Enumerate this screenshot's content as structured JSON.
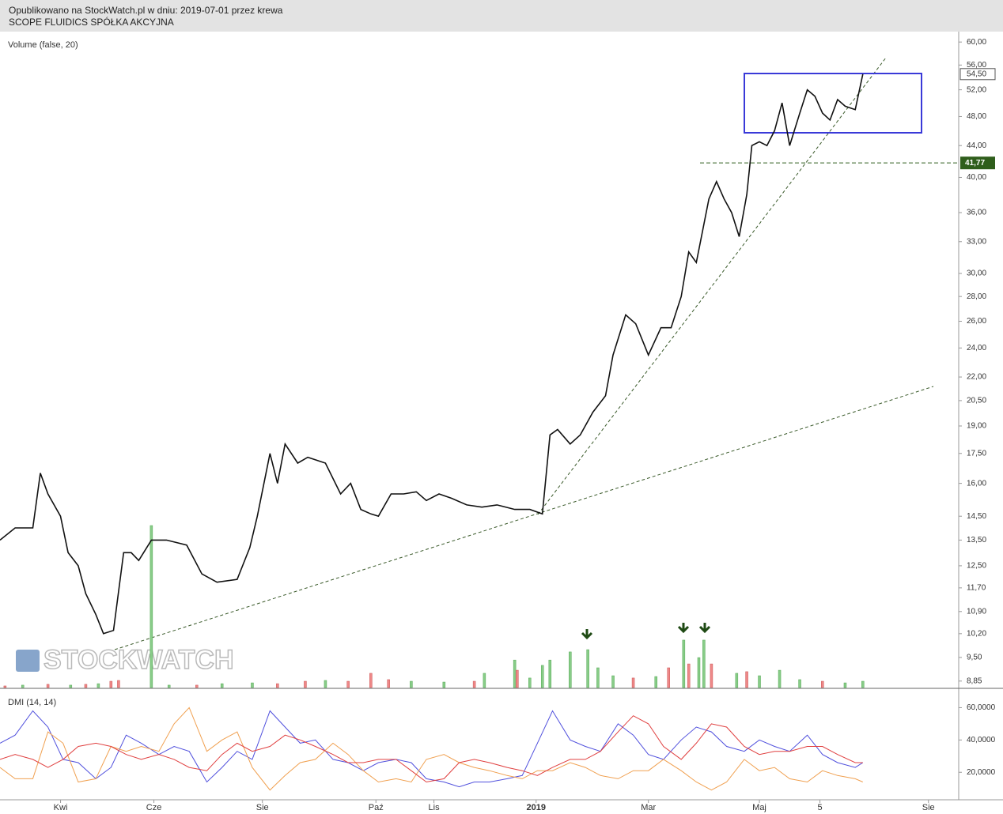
{
  "header": {
    "published": "Opublikowano na StockWatch.pl w dniu: 2019-07-01 przez krewa",
    "instrument": "SCOPE FLUIDICS SPÓŁKA AKCYJNA"
  },
  "chart_data": [
    {
      "type": "line",
      "log_y": true,
      "x": [
        0,
        6,
        13,
        16,
        19,
        24,
        27,
        31,
        34,
        38,
        41,
        45,
        49,
        52,
        55,
        60,
        66,
        74,
        80,
        86,
        94,
        99,
        102,
        107,
        110,
        113,
        118,
        122,
        129,
        135,
        139,
        143,
        147,
        150,
        155,
        160,
        165,
        169,
        174,
        179,
        185,
        191,
        197,
        204,
        210,
        215,
        218,
        221,
        226,
        230,
        235,
        240,
        243,
        248,
        252,
        257,
        262,
        266,
        270,
        273,
        276,
        281,
        284,
        287,
        290,
        293,
        296,
        298,
        301,
        304,
        307,
        310,
        313,
        317,
        320,
        323,
        326,
        329,
        332,
        335,
        339,
        342
      ],
      "series": [
        {
          "color": "#111111",
          "values": [
            13.5,
            14.0,
            14.0,
            16.5,
            15.5,
            14.5,
            13.0,
            12.5,
            11.5,
            10.8,
            10.2,
            10.3,
            13.0,
            13.0,
            12.7,
            13.5,
            13.5,
            13.3,
            12.2,
            11.9,
            12.0,
            13.2,
            14.5,
            17.5,
            16.0,
            18.0,
            17.0,
            17.3,
            17.0,
            15.5,
            16.0,
            14.8,
            14.6,
            14.5,
            15.5,
            15.5,
            15.6,
            15.2,
            15.5,
            15.3,
            15.0,
            14.9,
            15.0,
            14.8,
            14.8,
            14.6,
            18.5,
            18.8,
            18.0,
            18.5,
            19.8,
            20.8,
            23.5,
            26.5,
            25.8,
            23.5,
            25.5,
            25.5,
            28.0,
            32.0,
            31.0,
            37.5,
            39.5,
            37.5,
            36.0,
            33.5,
            38.0,
            44.0,
            44.5,
            44.0,
            46.0,
            50.0,
            44.0,
            48.5,
            52.0,
            51.0,
            48.5,
            47.5,
            50.5,
            49.5,
            49.0,
            54.5
          ]
        }
      ],
      "xlim": [
        0,
        380
      ],
      "ylim": [
        8.68,
        61.9
      ],
      "yticks": [
        {
          "value": 60,
          "label": "60,00"
        },
        {
          "value": 56,
          "label": "56,00"
        },
        {
          "value": 52,
          "label": "52,00"
        },
        {
          "value": 48,
          "label": "48,00"
        },
        {
          "value": 44,
          "label": "44,00"
        },
        {
          "value": 40,
          "label": "40,00"
        },
        {
          "value": 36,
          "label": "36,00"
        },
        {
          "value": 33,
          "label": "33,00"
        },
        {
          "value": 30,
          "label": "30,00"
        },
        {
          "value": 28,
          "label": "28,00"
        },
        {
          "value": 26,
          "label": "26,00"
        },
        {
          "value": 24,
          "label": "24,00"
        },
        {
          "value": 22,
          "label": "22,00"
        },
        {
          "value": 20.5,
          "label": "20,50"
        },
        {
          "value": 19,
          "label": "19,00"
        },
        {
          "value": 17.5,
          "label": "17,50"
        },
        {
          "value": 16,
          "label": "16,00"
        },
        {
          "value": 14.5,
          "label": "14,50"
        },
        {
          "value": 13.5,
          "label": "13,50"
        },
        {
          "value": 12.5,
          "label": "12,50"
        },
        {
          "value": 11.7,
          "label": "11,70"
        },
        {
          "value": 10.9,
          "label": "10,90"
        },
        {
          "value": 10.2,
          "label": "10,20"
        },
        {
          "value": 9.5,
          "label": "9,50"
        },
        {
          "value": 8.85,
          "label": "8,85"
        }
      ],
      "last_price": {
        "value": 54.5,
        "label": "54,50"
      },
      "level": {
        "value": 41.77,
        "label": "41,77",
        "color": "#2f5e1c"
      },
      "volume": {
        "label": "Volume (false, 20)",
        "ylim": [
          0,
          100
        ],
        "x": [
          2,
          9,
          19,
          28,
          34,
          39,
          44,
          47,
          60,
          67,
          78,
          88,
          100,
          110,
          121,
          129,
          138,
          147,
          154,
          163,
          176,
          188,
          192,
          204,
          205,
          210,
          215,
          218,
          226,
          233,
          237,
          243,
          251,
          260,
          265,
          271,
          273,
          277,
          279,
          282,
          292,
          296,
          301,
          309,
          317,
          326,
          335,
          342
        ],
        "values": [
          1,
          1.5,
          2,
          1.5,
          2,
          2.4,
          3.9,
          4.4,
          100,
          1.5,
          1.5,
          2.4,
          2.9,
          2.4,
          3.9,
          4.4,
          3.9,
          8.8,
          4.9,
          3.9,
          3.4,
          3.9,
          8.8,
          17,
          10.7,
          5.9,
          13.7,
          17,
          22,
          23.4,
          12.2,
          7.3,
          5.9,
          6.8,
          12.2,
          29.3,
          14.6,
          18.5,
          29.3,
          14.6,
          8.8,
          9.8,
          7.3,
          10.7,
          4.9,
          3.9,
          2.9,
          3.9
        ],
        "colors": [
          "#e88",
          "#8c8",
          "#e88",
          "#8c8",
          "#e88",
          "#8c8",
          "#e88",
          "#e88",
          "#8c8",
          "#8c8",
          "#e88",
          "#8c8",
          "#8c8",
          "#e88",
          "#e88",
          "#8c8",
          "#e88",
          "#e88",
          "#e88",
          "#8c8",
          "#8c8",
          "#e88",
          "#8c8",
          "#8c8",
          "#e88",
          "#8c8",
          "#8c8",
          "#8c8",
          "#8c8",
          "#8c8",
          "#8c8",
          "#8c8",
          "#e88",
          "#8c8",
          "#e88",
          "#8c8",
          "#e88",
          "#8c8",
          "#8c8",
          "#e88",
          "#8c8",
          "#e88",
          "#8c8",
          "#8c8",
          "#8c8",
          "#e88",
          "#8c8",
          "#8c8"
        ]
      },
      "watermark": "STOCKWATCH"
    },
    {
      "type": "line",
      "title": "DMI (14, 14)",
      "x": [
        0,
        6,
        13,
        19,
        25,
        31,
        38,
        44,
        50,
        56,
        63,
        69,
        75,
        82,
        88,
        94,
        100,
        107,
        113,
        119,
        125,
        132,
        138,
        144,
        150,
        157,
        163,
        169,
        176,
        182,
        188,
        194,
        201,
        207,
        213,
        219,
        226,
        232,
        238,
        245,
        251,
        257,
        263,
        270,
        276,
        282,
        288,
        295,
        301,
        307,
        313,
        320,
        326,
        332,
        339,
        342
      ],
      "series": [
        {
          "color": "#5050dd",
          "values": [
            38,
            43,
            58,
            48,
            28,
            26,
            16,
            23,
            43,
            38,
            31,
            36,
            33,
            14,
            23,
            33,
            28,
            58,
            48,
            38,
            40,
            28,
            26,
            21,
            26,
            28,
            26,
            16,
            14,
            11,
            14,
            14,
            16,
            18,
            38,
            58,
            40,
            36,
            33,
            50,
            43,
            31,
            28,
            40,
            48,
            45,
            36,
            33,
            40,
            36,
            33,
            43,
            31,
            26,
            23,
            26
          ]
        },
        {
          "color": "#f0a050",
          "values": [
            23,
            16,
            16,
            45,
            38,
            14,
            16,
            36,
            33,
            36,
            33,
            50,
            60,
            33,
            40,
            45,
            23,
            9,
            18,
            26,
            28,
            38,
            31,
            21,
            14,
            16,
            14,
            28,
            31,
            26,
            23,
            21,
            18,
            16,
            21,
            21,
            26,
            23,
            18,
            16,
            21,
            21,
            28,
            21,
            14,
            9,
            14,
            28,
            21,
            23,
            16,
            14,
            21,
            18,
            16,
            14
          ]
        },
        {
          "color": "#e04040",
          "values": [
            28,
            31,
            28,
            23,
            28,
            36,
            38,
            36,
            31,
            28,
            31,
            28,
            23,
            21,
            31,
            38,
            33,
            36,
            43,
            40,
            36,
            31,
            26,
            26,
            28,
            28,
            21,
            14,
            16,
            26,
            28,
            26,
            23,
            21,
            18,
            23,
            28,
            28,
            33,
            45,
            55,
            50,
            36,
            28,
            38,
            50,
            48,
            36,
            31,
            33,
            33,
            36,
            36,
            31,
            26,
            26
          ]
        }
      ],
      "xlim": [
        0,
        380
      ],
      "ylim": [
        3,
        70
      ],
      "yticks": [
        {
          "value": 60,
          "label": "60,0000"
        },
        {
          "value": 40,
          "label": "40,0000"
        },
        {
          "value": 20,
          "label": "20,0000"
        }
      ],
      "xticks": [
        {
          "value": 24,
          "label": "Kwi"
        },
        {
          "value": 61,
          "label": "Cze"
        },
        {
          "value": 104,
          "label": "Sie"
        },
        {
          "value": 149,
          "label": "Paź"
        },
        {
          "value": 172,
          "label": "Lis"
        },
        212.5,
        {
          "value": 257,
          "label": "Mar"
        },
        {
          "value": 301,
          "label": "Maj"
        },
        {
          "value": 325,
          "label": "5"
        },
        {
          "value": 368,
          "label": "Sie"
        }
      ],
      "xtick_bold_label": "2019"
    }
  ]
}
